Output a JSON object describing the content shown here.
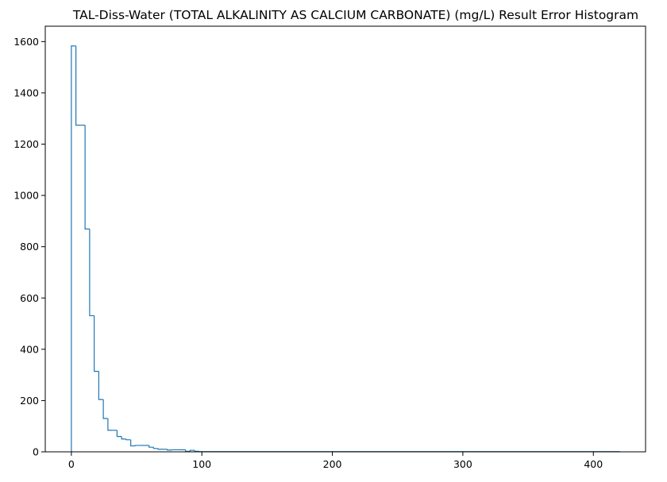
{
  "chart_data": {
    "type": "histogram",
    "title": "TAL-Diss-Water (TOTAL ALKALINITY AS CALCIUM CARBONATE) (mg/L) Result Error Histogram",
    "xlabel": "",
    "ylabel": "",
    "xlim": [
      -20,
      440
    ],
    "ylim": [
      0,
      1660
    ],
    "x_ticks": [
      0,
      100,
      200,
      300,
      400
    ],
    "y_ticks": [
      0,
      200,
      400,
      600,
      800,
      1000,
      1200,
      1400,
      1600
    ],
    "grid": false,
    "legend": "none",
    "line_color": "#1f77b4",
    "bin_width": 3.5,
    "bins": [
      {
        "x0": 0.0,
        "x1": 3.5,
        "count": 1583
      },
      {
        "x0": 3.5,
        "x1": 7.0,
        "count": 1274
      },
      {
        "x0": 7.0,
        "x1": 10.5,
        "count": 1274
      },
      {
        "x0": 10.5,
        "x1": 14.0,
        "count": 869
      },
      {
        "x0": 14.0,
        "x1": 17.5,
        "count": 531
      },
      {
        "x0": 17.5,
        "x1": 21.0,
        "count": 314
      },
      {
        "x0": 21.0,
        "x1": 24.5,
        "count": 204
      },
      {
        "x0": 24.5,
        "x1": 28.0,
        "count": 130
      },
      {
        "x0": 28.0,
        "x1": 31.5,
        "count": 84
      },
      {
        "x0": 31.5,
        "x1": 35.0,
        "count": 84
      },
      {
        "x0": 35.0,
        "x1": 38.5,
        "count": 60
      },
      {
        "x0": 38.5,
        "x1": 42.0,
        "count": 50
      },
      {
        "x0": 42.0,
        "x1": 45.5,
        "count": 47
      },
      {
        "x0": 45.5,
        "x1": 49.0,
        "count": 23
      },
      {
        "x0": 49.0,
        "x1": 52.5,
        "count": 25
      },
      {
        "x0": 52.5,
        "x1": 56.0,
        "count": 25
      },
      {
        "x0": 56.0,
        "x1": 59.5,
        "count": 25
      },
      {
        "x0": 59.5,
        "x1": 63.0,
        "count": 18
      },
      {
        "x0": 63.0,
        "x1": 66.5,
        "count": 13
      },
      {
        "x0": 66.5,
        "x1": 70.0,
        "count": 10
      },
      {
        "x0": 70.0,
        "x1": 73.5,
        "count": 10
      },
      {
        "x0": 73.5,
        "x1": 77.0,
        "count": 7
      },
      {
        "x0": 77.0,
        "x1": 80.5,
        "count": 8
      },
      {
        "x0": 80.5,
        "x1": 84.0,
        "count": 8
      },
      {
        "x0": 84.0,
        "x1": 87.5,
        "count": 8
      },
      {
        "x0": 87.5,
        "x1": 91.0,
        "count": 2
      },
      {
        "x0": 91.0,
        "x1": 94.5,
        "count": 6
      },
      {
        "x0": 94.5,
        "x1": 98.0,
        "count": 2
      },
      {
        "x0": 98.0,
        "x1": 420.0,
        "count": 1
      }
    ]
  }
}
